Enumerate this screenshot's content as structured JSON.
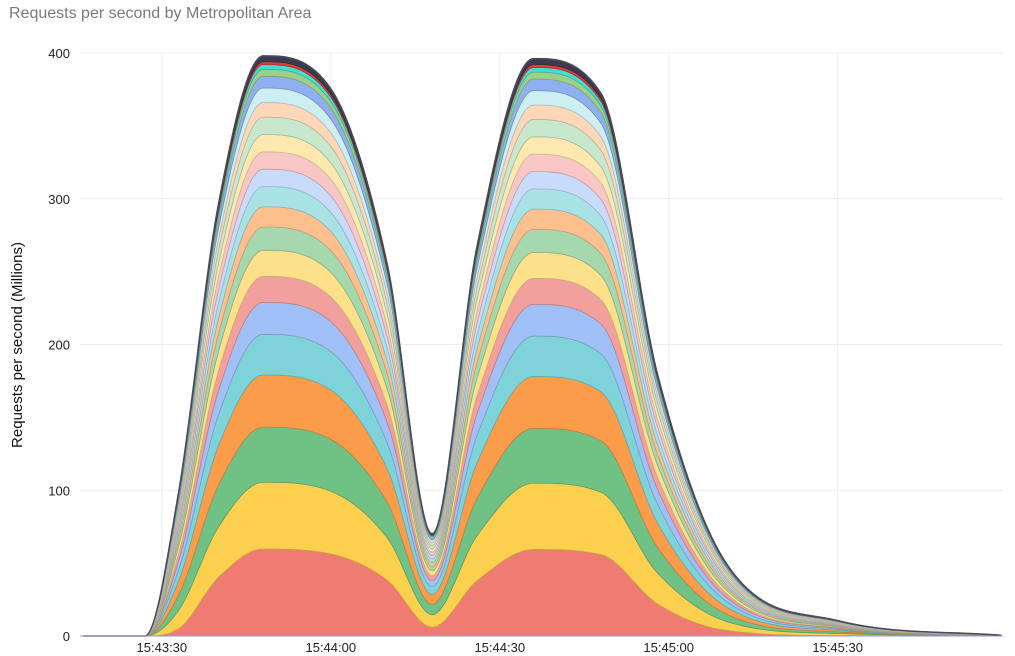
{
  "chart_data": {
    "type": "area",
    "stacked": true,
    "title": "Requests per second by Metropolitan Area",
    "xlabel": "",
    "ylabel": "Requests per second (Millions)",
    "ylim": [
      0,
      400
    ],
    "xlim": [
      "15:43:16",
      "15:45:59"
    ],
    "grid": true,
    "yticks": [
      "0",
      "100",
      "200",
      "300",
      "400"
    ],
    "xticks": [
      "15:43:30",
      "15:44:00",
      "15:44:30",
      "15:45:00",
      "15:45:30"
    ],
    "x": [
      "15:43:16",
      "15:43:27",
      "15:43:33",
      "15:43:40",
      "15:43:48",
      "15:44:00",
      "15:44:10",
      "15:44:18",
      "15:44:26",
      "15:44:36",
      "15:44:48",
      "15:44:58",
      "15:45:10",
      "15:45:30",
      "15:45:59"
    ],
    "series": [
      {
        "color": "#f07b72",
        "values": [
          0,
          0,
          5,
          40,
          59.7,
          56.3,
          38.3,
          6,
          38,
          59.4,
          55.8,
          22,
          4,
          0.3,
          0
        ]
      },
      {
        "color": "#fcd04f",
        "values": [
          0,
          0,
          12.7,
          34.5,
          45.8,
          43.1,
          29.3,
          8.6,
          31.1,
          45.5,
          42.8,
          21.3,
          6.3,
          1.4,
          0.1
        ]
      },
      {
        "color": "#6fc284",
        "values": [
          0,
          0,
          10.5,
          28.5,
          37.8,
          35.6,
          24.2,
          7.1,
          25.7,
          37.6,
          35.3,
          17.6,
          5.2,
          1.1,
          0.1
        ]
      },
      {
        "color": "#fb9c4b",
        "values": [
          0,
          0,
          9.9,
          27,
          35.8,
          33.8,
          23,
          6.8,
          24.3,
          35.6,
          33.5,
          16.7,
          5,
          1.1,
          0.1
        ]
      },
      {
        "color": "#7dd3d8",
        "values": [
          0,
          0,
          7.7,
          21,
          27.9,
          26.3,
          17.9,
          5.3,
          18.9,
          27.7,
          26,
          13,
          3.9,
          0.8,
          0.1
        ]
      },
      {
        "color": "#a1c0f7",
        "values": [
          0,
          0,
          6.1,
          16.5,
          21.9,
          20.6,
          14,
          4.1,
          14.9,
          21.8,
          20.5,
          10.2,
          3,
          0.7,
          0.1
        ]
      },
      {
        "color": "#f1a09e",
        "values": [
          0,
          0,
          5,
          13.5,
          17.9,
          16.9,
          11.5,
          3.4,
          12.2,
          17.8,
          16.7,
          8.3,
          2.5,
          0.5,
          0
        ]
      },
      {
        "color": "#fde08a",
        "values": [
          0,
          0,
          5,
          13.5,
          17.9,
          16.9,
          11.5,
          3.4,
          12.2,
          17.8,
          16.7,
          8.3,
          2.5,
          0.5,
          0
        ]
      },
      {
        "color": "#a6d8ad",
        "values": [
          0,
          0,
          4.4,
          12,
          15.9,
          15,
          10.2,
          3,
          10.8,
          15.8,
          14.9,
          7.4,
          2.2,
          0.5,
          0
        ]
      },
      {
        "color": "#fcc08e",
        "values": [
          0,
          0,
          3.9,
          10.5,
          13.9,
          13.1,
          8.9,
          2.6,
          9.5,
          13.9,
          13,
          6.5,
          1.9,
          0.4,
          0
        ]
      },
      {
        "color": "#a8e2e5",
        "values": [
          0,
          0,
          3.9,
          10.5,
          13.9,
          13.1,
          8.9,
          2.6,
          9.5,
          13.9,
          13,
          6.5,
          1.9,
          0.4,
          0
        ]
      },
      {
        "color": "#c9dbfb",
        "values": [
          0,
          0,
          3.3,
          9,
          11.9,
          11.3,
          7.7,
          2.3,
          8.1,
          11.9,
          11.2,
          5.6,
          1.7,
          0.4,
          0
        ]
      },
      {
        "color": "#f8c6c4",
        "values": [
          0,
          0,
          3.3,
          9,
          11.9,
          11.3,
          7.7,
          2.3,
          8.1,
          11.9,
          11.2,
          5.6,
          1.7,
          0.4,
          0
        ]
      },
      {
        "color": "#fde9b0",
        "values": [
          0,
          0,
          3.3,
          9,
          11.9,
          11.3,
          7.7,
          2.3,
          8.1,
          11.9,
          11.2,
          5.6,
          1.7,
          0.4,
          0
        ]
      },
      {
        "color": "#c7e8cc",
        "values": [
          0,
          0,
          3.3,
          9,
          11.9,
          11.3,
          7.7,
          2.3,
          8.1,
          11.9,
          11.2,
          5.6,
          1.7,
          0.4,
          0
        ]
      },
      {
        "color": "#fdd7b8",
        "values": [
          0,
          0,
          2.8,
          7.5,
          10,
          9.4,
          6.4,
          1.9,
          6.8,
          9.9,
          9.3,
          4.6,
          1.4,
          0.3,
          0
        ]
      },
      {
        "color": "#cdeff2",
        "values": [
          0,
          0,
          2.8,
          7.5,
          10,
          9.4,
          6.4,
          1.9,
          6.8,
          9.9,
          9.3,
          4.6,
          1.4,
          0.3,
          0
        ]
      },
      {
        "color": "#8fb0ee",
        "values": [
          0,
          0,
          2.2,
          6,
          8,
          7.5,
          5.1,
          1.5,
          5.4,
          7.9,
          7.4,
          3.7,
          1.1,
          0.2,
          0
        ]
      },
      {
        "color": "#9ccf8a",
        "values": [
          0,
          0,
          1.3,
          3.6,
          4.8,
          4.5,
          3.1,
          0.9,
          3.2,
          4.8,
          4.5,
          2.2,
          0.7,
          0.1,
          0
        ]
      },
      {
        "color": "#40e0d0",
        "values": [
          0,
          0,
          0.9,
          2.4,
          3.2,
          3,
          2,
          0.6,
          2.2,
          3.2,
          3,
          1.5,
          0.4,
          0.1,
          0
        ]
      },
      {
        "color": "#e23a3a",
        "values": [
          0,
          0,
          0.6,
          1.5,
          2,
          1.9,
          1.3,
          0.4,
          1.4,
          2,
          1.9,
          0.9,
          0.3,
          0.1,
          0
        ]
      },
      {
        "color": "#3b3b4f",
        "values": [
          0,
          0,
          1.1,
          3,
          4,
          3.8,
          2.6,
          0.8,
          2.7,
          4,
          3.7,
          1.9,
          0.6,
          0.1,
          0
        ]
      }
    ]
  }
}
